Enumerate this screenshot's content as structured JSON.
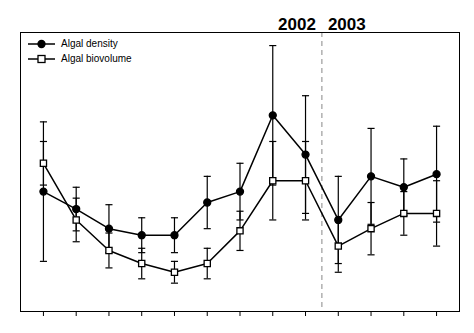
{
  "chart_data": {
    "type": "line",
    "x": [
      1,
      2,
      3,
      4,
      5,
      6,
      7,
      8,
      9,
      10,
      11,
      12,
      13
    ],
    "series": [
      {
        "name": "Algal density",
        "color": "#000000",
        "marker": "circle",
        "values": [
          0.55,
          0.47,
          0.38,
          0.35,
          0.35,
          0.5,
          0.55,
          0.9,
          0.72,
          0.42,
          0.62,
          0.57,
          0.63
        ],
        "errors": [
          0.32,
          0.1,
          0.11,
          0.08,
          0.08,
          0.12,
          0.13,
          0.32,
          0.27,
          0.2,
          0.22,
          0.13,
          0.22
        ]
      },
      {
        "name": "Algal biovolume",
        "color": "#000000",
        "marker": "open-square",
        "values": [
          0.68,
          0.42,
          0.28,
          0.22,
          0.18,
          0.22,
          0.37,
          0.6,
          0.6,
          0.3,
          0.38,
          0.45,
          0.45
        ],
        "errors": [
          0.1,
          0.1,
          0.08,
          0.07,
          0.05,
          0.07,
          0.09,
          0.18,
          0.18,
          0.12,
          0.12,
          0.1,
          0.15
        ]
      }
    ],
    "annotations": [
      "2002",
      "2003"
    ],
    "divider_x": 9.5,
    "xlim": [
      0.3,
      13.7
    ],
    "ylim": [
      0,
      1.28
    ],
    "xticks": [
      1,
      2,
      3,
      4,
      5,
      6,
      7,
      8,
      9,
      10,
      11,
      12,
      13
    ],
    "tick_labels": false,
    "legend": "upper left",
    "grid": false
  }
}
